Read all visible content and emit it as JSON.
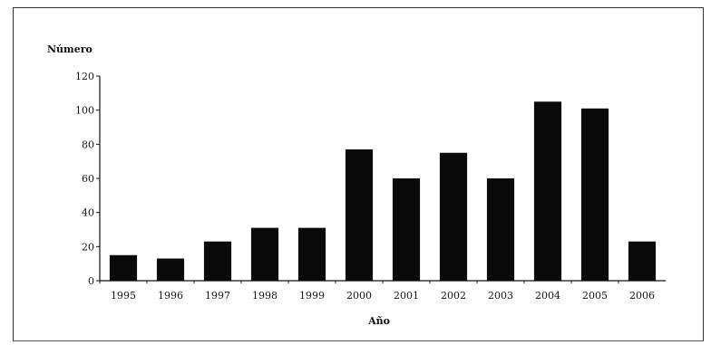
{
  "chart_data": {
    "type": "bar",
    "ylabel": "Número",
    "xlabel": "Año",
    "categories": [
      "1995",
      "1996",
      "1997",
      "1998",
      "1999",
      "2000",
      "2001",
      "2002",
      "2003",
      "2004",
      "2005",
      "2006"
    ],
    "values": [
      15,
      13,
      23,
      31,
      31,
      77,
      60,
      75,
      60,
      105,
      101,
      23
    ],
    "ylim": [
      0,
      120
    ],
    "yticks": [
      0,
      20,
      40,
      60,
      80,
      100,
      120
    ],
    "grid": false,
    "bar_color": "#0a0a0a"
  }
}
